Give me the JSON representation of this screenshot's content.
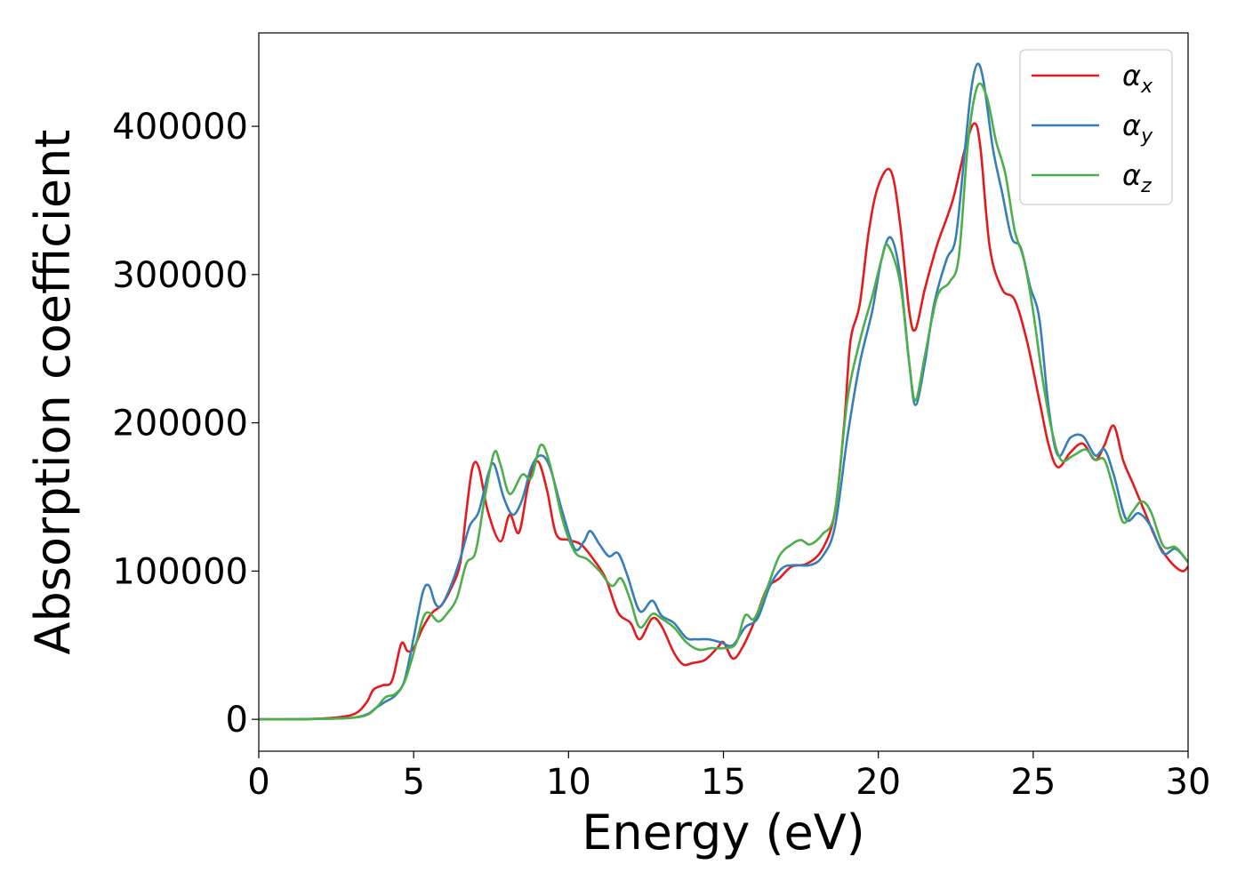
{
  "chart_data": {
    "type": "line",
    "title": "",
    "xlabel": "Energy (eV)",
    "ylabel": "Absorption coefficient",
    "xlim": [
      0,
      30
    ],
    "ylim": [
      -21500,
      463000
    ],
    "xticks": [
      0,
      5,
      10,
      15,
      20,
      25,
      30
    ],
    "yticks": [
      0,
      100000,
      200000,
      300000,
      400000
    ],
    "grid": false,
    "legend": "top-right",
    "series": [
      {
        "name": "α",
        "subscript": "x",
        "color": "#e41a1c",
        "points": [
          [
            0,
            0
          ],
          [
            1,
            0
          ],
          [
            2,
            500
          ],
          [
            2.8,
            2000
          ],
          [
            3.2,
            5000
          ],
          [
            3.5,
            12000
          ],
          [
            3.7,
            20000
          ],
          [
            4.0,
            23000
          ],
          [
            4.3,
            26000
          ],
          [
            4.6,
            51000
          ],
          [
            4.8,
            46000
          ],
          [
            5.0,
            48000
          ],
          [
            5.3,
            62000
          ],
          [
            5.6,
            72000
          ],
          [
            5.9,
            77000
          ],
          [
            6.2,
            88000
          ],
          [
            6.5,
            105000
          ],
          [
            6.7,
            140000
          ],
          [
            6.9,
            170000
          ],
          [
            7.1,
            170000
          ],
          [
            7.4,
            140000
          ],
          [
            7.8,
            120000
          ],
          [
            8.1,
            138000
          ],
          [
            8.4,
            126000
          ],
          [
            8.7,
            158000
          ],
          [
            9.0,
            174000
          ],
          [
            9.3,
            155000
          ],
          [
            9.6,
            125000
          ],
          [
            10.0,
            121000
          ],
          [
            10.4,
            118000
          ],
          [
            10.8,
            108000
          ],
          [
            11.2,
            95000
          ],
          [
            11.6,
            72000
          ],
          [
            12.0,
            65000
          ],
          [
            12.3,
            54000
          ],
          [
            12.7,
            68000
          ],
          [
            13.0,
            63000
          ],
          [
            13.4,
            45000
          ],
          [
            13.7,
            37000
          ],
          [
            14.0,
            38000
          ],
          [
            14.4,
            40000
          ],
          [
            14.8,
            48000
          ],
          [
            15.0,
            52000
          ],
          [
            15.3,
            41000
          ],
          [
            15.6,
            48000
          ],
          [
            16.0,
            66000
          ],
          [
            16.4,
            88000
          ],
          [
            16.8,
            95000
          ],
          [
            17.2,
            103000
          ],
          [
            17.7,
            105000
          ],
          [
            18.2,
            115000
          ],
          [
            18.6,
            140000
          ],
          [
            18.9,
            200000
          ],
          [
            19.1,
            255000
          ],
          [
            19.4,
            280000
          ],
          [
            19.7,
            330000
          ],
          [
            20.0,
            360000
          ],
          [
            20.4,
            370000
          ],
          [
            20.7,
            335000
          ],
          [
            21.0,
            275000
          ],
          [
            21.2,
            263000
          ],
          [
            21.5,
            290000
          ],
          [
            21.9,
            320000
          ],
          [
            22.4,
            350000
          ],
          [
            22.8,
            385000
          ],
          [
            23.1,
            402000
          ],
          [
            23.3,
            385000
          ],
          [
            23.6,
            318000
          ],
          [
            24.0,
            290000
          ],
          [
            24.4,
            283000
          ],
          [
            24.8,
            255000
          ],
          [
            25.2,
            215000
          ],
          [
            25.5,
            185000
          ],
          [
            25.8,
            170000
          ],
          [
            26.2,
            180000
          ],
          [
            26.6,
            186000
          ],
          [
            27.0,
            175000
          ],
          [
            27.3,
            185000
          ],
          [
            27.6,
            198000
          ],
          [
            27.9,
            175000
          ],
          [
            28.2,
            160000
          ],
          [
            28.6,
            140000
          ],
          [
            29.0,
            120000
          ],
          [
            29.4,
            107000
          ],
          [
            29.8,
            100000
          ],
          [
            30.0,
            103000
          ]
        ]
      },
      {
        "name": "α",
        "subscript": "y",
        "color": "#377eb8",
        "points": [
          [
            0,
            0
          ],
          [
            1,
            0
          ],
          [
            2,
            300
          ],
          [
            3,
            1000
          ],
          [
            3.5,
            3500
          ],
          [
            3.8,
            8000
          ],
          [
            4.1,
            12000
          ],
          [
            4.4,
            16000
          ],
          [
            4.7,
            26000
          ],
          [
            5.0,
            55000
          ],
          [
            5.3,
            86000
          ],
          [
            5.5,
            90000
          ],
          [
            5.7,
            78000
          ],
          [
            5.9,
            77000
          ],
          [
            6.2,
            90000
          ],
          [
            6.5,
            108000
          ],
          [
            6.8,
            130000
          ],
          [
            7.1,
            140000
          ],
          [
            7.4,
            165000
          ],
          [
            7.6,
            172000
          ],
          [
            7.9,
            150000
          ],
          [
            8.2,
            138000
          ],
          [
            8.5,
            148000
          ],
          [
            8.8,
            170000
          ],
          [
            9.1,
            178000
          ],
          [
            9.4,
            170000
          ],
          [
            9.8,
            140000
          ],
          [
            10.2,
            115000
          ],
          [
            10.5,
            120000
          ],
          [
            10.7,
            127000
          ],
          [
            11.0,
            118000
          ],
          [
            11.3,
            110000
          ],
          [
            11.6,
            112000
          ],
          [
            11.9,
            97000
          ],
          [
            12.3,
            73000
          ],
          [
            12.7,
            80000
          ],
          [
            13.0,
            70000
          ],
          [
            13.4,
            65000
          ],
          [
            13.8,
            55000
          ],
          [
            14.1,
            54000
          ],
          [
            14.5,
            54000
          ],
          [
            14.9,
            52000
          ],
          [
            15.3,
            50000
          ],
          [
            15.7,
            62000
          ],
          [
            16.1,
            68000
          ],
          [
            16.5,
            90000
          ],
          [
            16.9,
            102000
          ],
          [
            17.3,
            104000
          ],
          [
            17.8,
            104000
          ],
          [
            18.2,
            110000
          ],
          [
            18.6,
            130000
          ],
          [
            19.0,
            190000
          ],
          [
            19.4,
            240000
          ],
          [
            19.8,
            275000
          ],
          [
            20.1,
            310000
          ],
          [
            20.4,
            325000
          ],
          [
            20.7,
            300000
          ],
          [
            21.0,
            240000
          ],
          [
            21.2,
            212000
          ],
          [
            21.5,
            240000
          ],
          [
            21.8,
            280000
          ],
          [
            22.2,
            310000
          ],
          [
            22.5,
            325000
          ],
          [
            22.8,
            385000
          ],
          [
            23.0,
            425000
          ],
          [
            23.2,
            442000
          ],
          [
            23.4,
            430000
          ],
          [
            23.7,
            385000
          ],
          [
            24.0,
            355000
          ],
          [
            24.3,
            325000
          ],
          [
            24.6,
            318000
          ],
          [
            24.9,
            292000
          ],
          [
            25.2,
            270000
          ],
          [
            25.5,
            210000
          ],
          [
            25.8,
            178000
          ],
          [
            26.2,
            190000
          ],
          [
            26.6,
            191000
          ],
          [
            27.0,
            178000
          ],
          [
            27.3,
            182000
          ],
          [
            27.6,
            165000
          ],
          [
            28.0,
            135000
          ],
          [
            28.4,
            139000
          ],
          [
            28.8,
            130000
          ],
          [
            29.2,
            112000
          ],
          [
            29.6,
            115000
          ],
          [
            30.0,
            106000
          ]
        ]
      },
      {
        "name": "α",
        "subscript": "z",
        "color": "#4daf4a",
        "points": [
          [
            0,
            0
          ],
          [
            1,
            0
          ],
          [
            2,
            300
          ],
          [
            3,
            1000
          ],
          [
            3.5,
            3000
          ],
          [
            3.8,
            8000
          ],
          [
            4.1,
            15000
          ],
          [
            4.4,
            17000
          ],
          [
            4.7,
            25000
          ],
          [
            5.0,
            45000
          ],
          [
            5.3,
            68000
          ],
          [
            5.5,
            72000
          ],
          [
            5.8,
            66000
          ],
          [
            6.1,
            72000
          ],
          [
            6.4,
            82000
          ],
          [
            6.7,
            105000
          ],
          [
            7.0,
            113000
          ],
          [
            7.3,
            150000
          ],
          [
            7.6,
            180000
          ],
          [
            7.8,
            172000
          ],
          [
            8.1,
            152000
          ],
          [
            8.5,
            165000
          ],
          [
            8.8,
            163000
          ],
          [
            9.1,
            185000
          ],
          [
            9.4,
            172000
          ],
          [
            9.8,
            135000
          ],
          [
            10.2,
            113000
          ],
          [
            10.6,
            108000
          ],
          [
            11.0,
            100000
          ],
          [
            11.4,
            90000
          ],
          [
            11.7,
            95000
          ],
          [
            12.0,
            80000
          ],
          [
            12.3,
            62000
          ],
          [
            12.7,
            71000
          ],
          [
            13.0,
            68000
          ],
          [
            13.4,
            62000
          ],
          [
            13.8,
            52000
          ],
          [
            14.2,
            47000
          ],
          [
            14.6,
            48000
          ],
          [
            15.0,
            48000
          ],
          [
            15.4,
            51000
          ],
          [
            15.7,
            70000
          ],
          [
            16.0,
            68000
          ],
          [
            16.4,
            88000
          ],
          [
            16.8,
            110000
          ],
          [
            17.2,
            118000
          ],
          [
            17.5,
            121000
          ],
          [
            17.8,
            118000
          ],
          [
            18.2,
            125000
          ],
          [
            18.6,
            140000
          ],
          [
            19.0,
            215000
          ],
          [
            19.4,
            255000
          ],
          [
            19.8,
            285000
          ],
          [
            20.1,
            310000
          ],
          [
            20.3,
            320000
          ],
          [
            20.7,
            295000
          ],
          [
            21.0,
            240000
          ],
          [
            21.2,
            215000
          ],
          [
            21.5,
            245000
          ],
          [
            21.9,
            285000
          ],
          [
            22.3,
            295000
          ],
          [
            22.6,
            312000
          ],
          [
            22.9,
            390000
          ],
          [
            23.2,
            427000
          ],
          [
            23.5,
            420000
          ],
          [
            23.8,
            390000
          ],
          [
            24.1,
            368000
          ],
          [
            24.4,
            330000
          ],
          [
            24.7,
            310000
          ],
          [
            25.0,
            275000
          ],
          [
            25.3,
            230000
          ],
          [
            25.6,
            195000
          ],
          [
            25.9,
            175000
          ],
          [
            26.3,
            178000
          ],
          [
            26.7,
            182000
          ],
          [
            27.0,
            175000
          ],
          [
            27.3,
            175000
          ],
          [
            27.6,
            155000
          ],
          [
            27.9,
            133000
          ],
          [
            28.2,
            140000
          ],
          [
            28.5,
            147000
          ],
          [
            28.8,
            140000
          ],
          [
            29.2,
            117000
          ],
          [
            29.6,
            116000
          ],
          [
            30.0,
            106000
          ]
        ]
      }
    ]
  }
}
